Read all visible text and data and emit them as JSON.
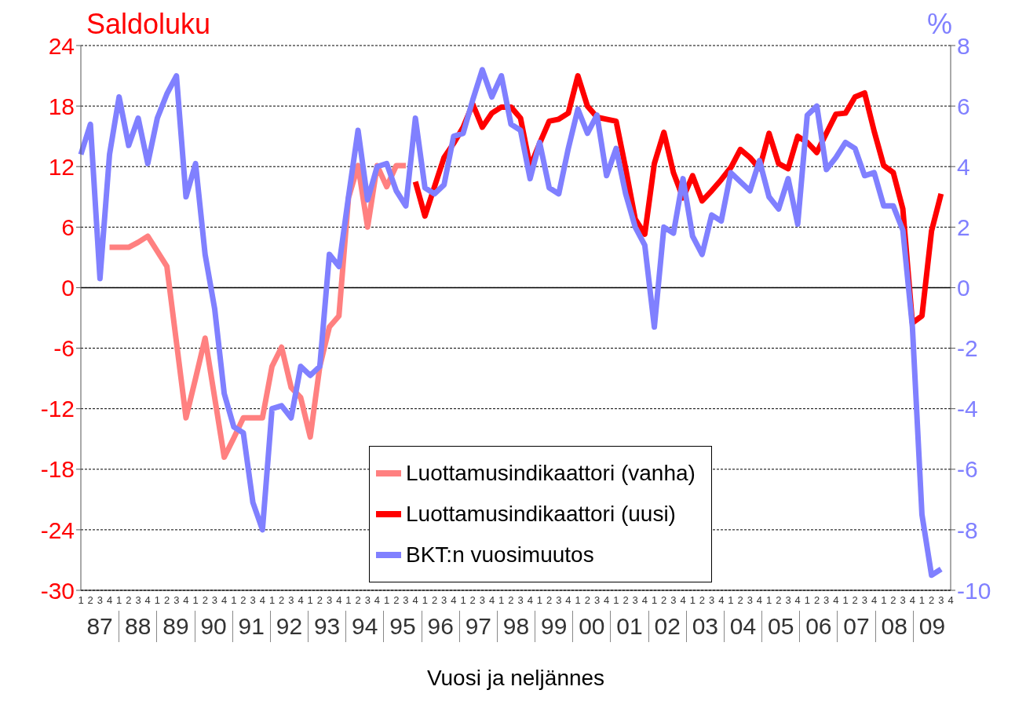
{
  "chart_data": {
    "type": "line",
    "xlabel": "Vuosi ja neljännes",
    "ylabel": "Saldoluku",
    "y2label": "%",
    "categories": [
      "1",
      "2",
      "3",
      "4",
      "1",
      "2",
      "3",
      "4",
      "1",
      "2",
      "3",
      "4",
      "1",
      "2",
      "3",
      "4",
      "1",
      "2",
      "3",
      "4",
      "1",
      "2",
      "3",
      "4",
      "1",
      "2",
      "3",
      "4",
      "1",
      "2",
      "3",
      "4",
      "1",
      "2",
      "3",
      "4",
      "1",
      "2",
      "3",
      "4",
      "1",
      "2",
      "3",
      "4",
      "1",
      "2",
      "3",
      "4",
      "1",
      "2",
      "3",
      "4",
      "1",
      "2",
      "3",
      "4",
      "1",
      "2",
      "3",
      "4",
      "1",
      "2",
      "3",
      "4",
      "1",
      "2",
      "3",
      "4",
      "1",
      "2",
      "3",
      "4",
      "1",
      "2",
      "3",
      "4",
      "1",
      "2",
      "3",
      "4",
      "1",
      "2",
      "3",
      "4",
      "1",
      "2",
      "3",
      "4",
      "1",
      "2",
      "3",
      "4"
    ],
    "annotations": [
      "87",
      "88",
      "89",
      "90",
      "91",
      "92",
      "93",
      "94",
      "95",
      "96",
      "97",
      "98",
      "99",
      "00",
      "01",
      "02",
      "03",
      "04",
      "05",
      "06",
      "07",
      "08",
      "09"
    ],
    "series": [
      {
        "name": "Luottamusindikaattori (vanha)",
        "color": "#ff8080",
        "values": [
          null,
          null,
          null,
          4,
          4,
          4,
          4.5,
          5.1,
          3.6,
          2.1,
          -5.4,
          -12.9,
          -9.0,
          -5.0,
          -10.9,
          -16.8,
          -14.9,
          -12.9,
          -12.9,
          -12.9,
          -7.8,
          -5.9,
          -9.9,
          -10.9,
          -14.8,
          -7.8,
          -3.9,
          -2.8,
          8.9,
          12.1,
          6.0,
          12.1,
          10.0,
          12.1,
          12.1,
          null,
          null,
          null,
          null,
          null,
          null,
          null,
          null,
          null,
          null,
          null,
          null,
          null,
          null,
          null,
          null,
          null,
          null,
          null,
          null,
          null,
          null,
          null,
          null,
          null,
          null,
          null,
          null,
          null,
          null,
          null,
          null,
          null,
          null,
          null,
          null,
          null,
          null,
          null,
          null,
          null,
          null,
          null,
          null,
          null,
          null,
          null,
          null,
          null,
          null,
          null,
          null,
          null,
          null,
          null,
          null,
          null
        ]
      },
      {
        "name": "Luottamusindikaattori (uusi)",
        "color": "#ff0000",
        "values": [
          null,
          null,
          null,
          null,
          null,
          null,
          null,
          null,
          null,
          null,
          null,
          null,
          null,
          null,
          null,
          null,
          null,
          null,
          null,
          null,
          null,
          null,
          null,
          null,
          null,
          null,
          null,
          null,
          null,
          null,
          null,
          null,
          null,
          null,
          null,
          10.5,
          7.1,
          10.0,
          12.9,
          14.3,
          15.9,
          18.2,
          15.9,
          17.3,
          17.9,
          17.9,
          16.8,
          12.0,
          14.3,
          16.5,
          16.7,
          17.3,
          21.0,
          18.0,
          16.9,
          16.7,
          16.5,
          11.8,
          6.8,
          5.3,
          12.3,
          15.4,
          11.4,
          8.9,
          11.1,
          8.6,
          9.6,
          10.7,
          11.9,
          13.7,
          12.9,
          11.8,
          15.3,
          12.3,
          11.8,
          15.0,
          14.4,
          13.4,
          15.3,
          17.2,
          17.3,
          18.9,
          19.3,
          15.5,
          12.1,
          11.4,
          7.8,
          -3.5,
          -2.8,
          5.6,
          9.3,
          null
        ]
      },
      {
        "name": "BKT:n vuosimuutos",
        "color": "#8080ff",
        "axis": "y2",
        "values": [
          4.4,
          5.4,
          0.3,
          4.4,
          6.3,
          4.7,
          5.6,
          4.1,
          5.6,
          6.4,
          7.0,
          3.0,
          4.1,
          1.1,
          -0.7,
          -3.5,
          -4.6,
          -4.8,
          -7.1,
          -8.0,
          -4.0,
          -3.9,
          -4.3,
          -2.6,
          -2.9,
          -2.6,
          1.1,
          0.7,
          3.0,
          5.2,
          2.9,
          4.0,
          4.1,
          3.2,
          2.7,
          5.6,
          3.3,
          3.1,
          3.4,
          5.0,
          5.1,
          6.2,
          7.2,
          6.3,
          7.0,
          5.4,
          5.2,
          3.6,
          4.8,
          3.3,
          3.1,
          4.6,
          5.9,
          5.1,
          5.7,
          3.7,
          4.6,
          3.1,
          2.0,
          1.4,
          -1.3,
          2.0,
          1.8,
          3.6,
          1.7,
          1.1,
          2.4,
          2.2,
          3.8,
          3.5,
          3.2,
          4.2,
          3.0,
          2.6,
          3.6,
          2.1,
          5.7,
          6.0,
          3.9,
          4.3,
          4.8,
          4.6,
          3.7,
          3.8,
          2.7,
          2.7,
          1.9,
          -1.3,
          -7.5,
          -9.5,
          -9.3,
          null
        ]
      }
    ],
    "ylim": [
      -30,
      24
    ],
    "yticks": [
      -30,
      -24,
      -18,
      -12,
      -6,
      0,
      6,
      12,
      18,
      24
    ],
    "y2lim": [
      -10,
      8
    ],
    "y2ticks": [
      -10,
      -8,
      -6,
      -4,
      -2,
      0,
      2,
      4,
      6,
      8
    ],
    "ref_lines": [
      {
        "axis": "y",
        "value": 0,
        "color": "#000000"
      }
    ],
    "grid": "y",
    "legend": "bottom",
    "marker": "none",
    "line_style": "solid"
  }
}
